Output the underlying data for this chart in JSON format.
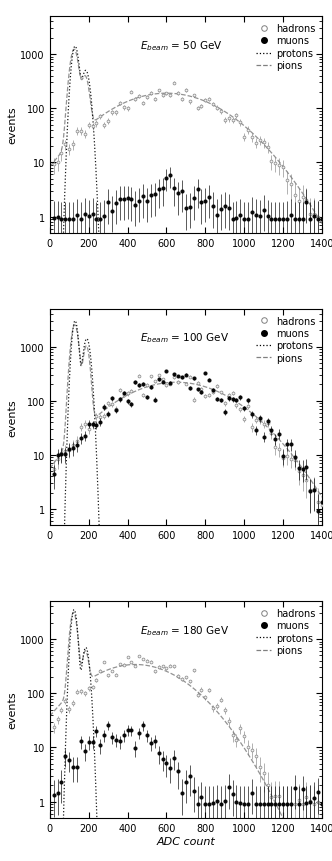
{
  "panels": [
    {
      "energy": "50 GeV",
      "xlim": [
        0,
        1400
      ],
      "ylim": [
        0.5,
        5000
      ],
      "xticks": [
        0,
        200,
        400,
        600,
        800,
        1000,
        1200,
        1400
      ],
      "annotation": "$E_{beam}$ = 50 GeV"
    },
    {
      "energy": "100 GeV",
      "xlim": [
        0,
        1400
      ],
      "ylim": [
        0.5,
        5000
      ],
      "xticks": [
        0,
        200,
        400,
        600,
        800,
        1000,
        1200,
        1400
      ],
      "annotation": "$E_{beam}$ = 100 GeV"
    },
    {
      "energy": "180 GeV",
      "xlim": [
        0,
        1400
      ],
      "ylim": [
        0.5,
        5000
      ],
      "xticks": [
        0,
        200,
        400,
        600,
        800,
        1000,
        1200,
        1400
      ],
      "annotation": "$E_{beam}$ = 180 GeV"
    }
  ],
  "legend_entries": [
    "hadrons",
    "muons",
    "protons",
    "pions"
  ],
  "xlabel": "ADC count",
  "ylabel": "events",
  "fig_width": 3.32,
  "fig_height": 8.62
}
